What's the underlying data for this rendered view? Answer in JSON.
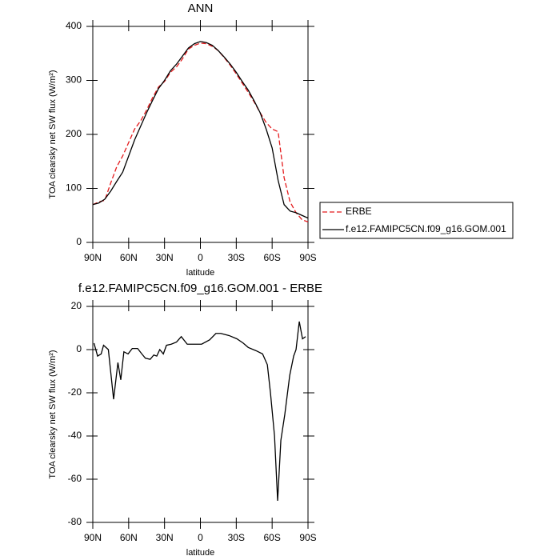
{
  "chart_data": [
    {
      "type": "line",
      "title": "ANN",
      "x_label": "latitude",
      "y_label": "TOA clearsky net SW flux (W/m²)",
      "x": [
        90,
        85,
        80,
        75,
        70,
        65,
        60,
        55,
        50,
        45,
        40,
        35,
        30,
        25,
        20,
        15,
        10,
        5,
        0,
        -5,
        -10,
        -15,
        -20,
        -25,
        -30,
        -35,
        -40,
        -45,
        -50,
        -55,
        -60,
        -65,
        -70,
        -75,
        -80,
        -85,
        -90
      ],
      "series": [
        {
          "name": "ERBE",
          "color": "#e41a1c",
          "line_style": "dashed",
          "values": [
            70,
            75,
            78,
            110,
            140,
            160,
            185,
            210,
            225,
            245,
            268,
            288,
            298,
            315,
            325,
            340,
            358,
            365,
            369,
            368,
            363,
            355,
            342,
            328,
            312,
            295,
            278,
            260,
            240,
            222,
            210,
            205,
            120,
            75,
            55,
            42,
            38
          ]
        },
        {
          "name": "f.e12.FAMIPC5CN.f09_g16.GOM.001",
          "color": "#000000",
          "line_style": "solid",
          "values": [
            70,
            73,
            80,
            95,
            113,
            130,
            160,
            190,
            215,
            240,
            263,
            285,
            300,
            318,
            330,
            345,
            360,
            368,
            372,
            370,
            365,
            355,
            343,
            330,
            315,
            298,
            282,
            262,
            240,
            210,
            175,
            115,
            70,
            58,
            55,
            50,
            45
          ]
        }
      ],
      "xlim": [
        90,
        -90
      ],
      "xticks": [
        {
          "value": 90,
          "label": "90N"
        },
        {
          "value": 60,
          "label": "60N"
        },
        {
          "value": 30,
          "label": "30N"
        },
        0,
        {
          "value": -30,
          "label": "30S"
        },
        {
          "value": -60,
          "label": "60S"
        },
        {
          "value": -90,
          "label": "90S"
        }
      ],
      "ylim": [
        0,
        400
      ],
      "yticks": [
        0,
        100,
        200,
        300,
        400
      ],
      "legend": "right"
    },
    {
      "type": "line",
      "title": "f.e12.FAMIPC5CN.f09_g16.GOM.001 - ERBE",
      "x_label": "latitude",
      "y_label": "TOA clearsky net SW flux (W/m²)",
      "x": [
        89,
        86,
        83,
        81,
        77,
        72.6,
        69,
        66.6,
        64,
        60.5,
        57,
        52.5,
        49,
        46,
        42,
        39,
        36.5,
        34,
        31,
        28.4,
        24.4,
        20,
        16,
        11,
        3,
        -1,
        -7.7,
        -13,
        -17,
        -24,
        -30.5,
        -35.8,
        -40,
        -46.5,
        -52,
        -56,
        -58.6,
        -62,
        -64.6,
        -67.3,
        -70.6,
        -74.7,
        -78,
        -80,
        -82.7,
        -85.4,
        -88
      ],
      "series": [
        {
          "name": "f.e12.FAMIPC5CN.f09_g16.GOM.001 - ERBE",
          "color": "#000000",
          "line_style": "solid",
          "values": [
            3,
            -3,
            -2,
            2,
            0,
            -23,
            -6,
            -14,
            -1,
            -2,
            0.5,
            0.5,
            -2,
            -4,
            -4.5,
            -2.5,
            -3,
            0,
            -2,
            2,
            2.5,
            3.5,
            6,
            2.5,
            2.5,
            2.5,
            4.5,
            7.5,
            7.5,
            6.5,
            5,
            3,
            1,
            -0.5,
            -2,
            -7,
            -20,
            -40,
            -70,
            -42,
            -30,
            -12,
            -3,
            0,
            13,
            5,
            6
          ]
        }
      ],
      "xlim": [
        90,
        -90
      ],
      "xticks": [
        {
          "value": 90,
          "label": "90N"
        },
        {
          "value": 60,
          "label": "60N"
        },
        {
          "value": 30,
          "label": "30N"
        },
        0,
        {
          "value": -30,
          "label": "30S"
        },
        {
          "value": -60,
          "label": "60S"
        },
        {
          "value": -90,
          "label": "90S"
        }
      ],
      "ylim": [
        -80,
        20
      ],
      "yticks": [
        -80,
        -60,
        -40,
        -20,
        0,
        20
      ]
    }
  ]
}
